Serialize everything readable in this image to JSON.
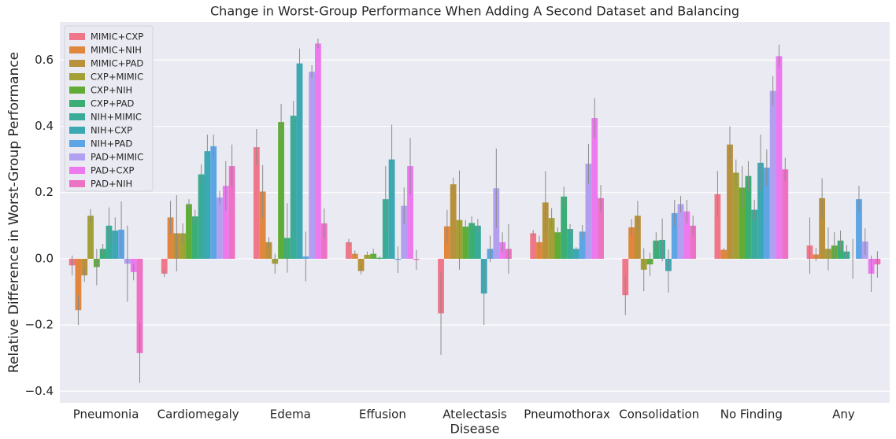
{
  "chart_data": {
    "type": "bar",
    "title": "Change in Worst-Group Performance When Adding A Second Dataset and Balancing",
    "x_label": "Disease",
    "y_label": "Relative Difference in Worst-Group Performance",
    "categories": [
      "Pneumonia",
      "Cardiomegaly",
      "Edema",
      "Effusion",
      "Atelectasis",
      "Pneumothorax",
      "Consolidation",
      "No Finding",
      "Any"
    ],
    "ylim": [
      -0.435,
      0.715
    ],
    "yticks": [
      {
        "value": -0.4,
        "label": "−0.4"
      },
      {
        "value": -0.2,
        "label": "−0.2"
      },
      {
        "value": 0,
        "label": "0.0"
      },
      0.2,
      0.4,
      0.6
    ],
    "grid": true,
    "legend": "upper left",
    "series": [
      {
        "name": "MIMIC+CXP",
        "color": "#f0778a",
        "values": [
          -0.02,
          -0.045,
          0.337,
          0.05,
          -0.165,
          0.077,
          -0.11,
          0.195,
          0.04
        ],
        "errors": [
          0.03,
          0.01,
          0.055,
          0.01,
          0.125,
          0.01,
          0.06,
          0.07,
          0.085
        ]
      },
      {
        "name": "MIMIC+NIH",
        "color": "#e0873d",
        "values": [
          -0.155,
          0.125,
          0.203,
          0.015,
          0.098,
          0.05,
          0.095,
          0.027,
          0.013
        ],
        "errors": [
          0.045,
          0.05,
          0.08,
          0.01,
          0.05,
          0.02,
          0.025,
          0.005,
          0.02
        ]
      },
      {
        "name": "MIMIC+PAD",
        "color": "#b8913a",
        "values": [
          -0.05,
          0.077,
          0.05,
          -0.037,
          0.225,
          0.17,
          0.13,
          0.345,
          0.183
        ],
        "errors": [
          0.02,
          0.115,
          0.015,
          0.01,
          0.02,
          0.095,
          0.045,
          0.055,
          0.06
        ]
      },
      {
        "name": "CXP+MIMIC",
        "color": "#a3a035",
        "values": [
          0.13,
          0.077,
          -0.015,
          0.012,
          0.117,
          0.123,
          -0.033,
          0.26,
          0.03
        ],
        "errors": [
          0.02,
          0.03,
          0.03,
          0.01,
          0.15,
          0.03,
          0.065,
          0.04,
          0.065
        ]
      },
      {
        "name": "CXP+NIH",
        "color": "#5fad36",
        "values": [
          -0.025,
          0.165,
          0.413,
          0.015,
          0.097,
          0.08,
          -0.017,
          0.215,
          0.04
        ],
        "errors": [
          0.055,
          0.015,
          0.055,
          0.015,
          0.02,
          0.015,
          0.035,
          0.065,
          0.04
        ]
      },
      {
        "name": "CXP+PAD",
        "color": "#3aae74",
        "values": [
          0.03,
          0.128,
          0.063,
          0.003,
          0.108,
          0.188,
          0.055,
          0.25,
          0.055
        ],
        "errors": [
          0.015,
          0.02,
          0.105,
          0.005,
          0.02,
          0.03,
          0.025,
          0.045,
          0.03
        ]
      },
      {
        "name": "NIH+MIMIC",
        "color": "#3aab98",
        "values": [
          0.1,
          0.255,
          0.432,
          0.18,
          0.1,
          0.09,
          0.057,
          0.148,
          0.022
        ],
        "errors": [
          0.055,
          0.03,
          0.045,
          0.1,
          0.02,
          0.015,
          0.065,
          0.03,
          0.02
        ]
      },
      {
        "name": "NIH+CXP",
        "color": "#3ba8b4",
        "values": [
          0.085,
          0.325,
          0.59,
          0.3,
          -0.105,
          0.03,
          -0.037,
          0.29,
          0
        ],
        "errors": [
          0.04,
          0.05,
          0.045,
          0.105,
          0.095,
          0.005,
          0.065,
          0.085,
          0.06
        ]
      },
      {
        "name": "NIH+PAD",
        "color": "#5ea5e6",
        "values": [
          0.088,
          0.34,
          0.007,
          -0.003,
          0.03,
          0.082,
          0.138,
          0.275,
          0.18
        ],
        "errors": [
          0.085,
          0.035,
          0.075,
          0.04,
          0.04,
          0.02,
          0.04,
          0.055,
          0.04
        ]
      },
      {
        "name": "PAD+MIMIC",
        "color": "#b29ff0",
        "values": [
          -0.015,
          0.185,
          0.565,
          0.16,
          0.213,
          0.287,
          0.165,
          0.507,
          0.052
        ],
        "errors": [
          0.115,
          0.02,
          0.02,
          0.055,
          0.12,
          0.06,
          0.025,
          0.045,
          0.04
        ]
      },
      {
        "name": "PAD+CXP",
        "color": "#ec79ee",
        "values": [
          -0.04,
          0.22,
          0.65,
          0.28,
          0.05,
          0.425,
          0.143,
          0.612,
          -0.045
        ],
        "errors": [
          0.025,
          0.075,
          0.015,
          0.085,
          0.03,
          0.06,
          0.035,
          0.035,
          0.055
        ]
      },
      {
        "name": "PAD+NIH",
        "color": "#ed72c4",
        "values": [
          -0.285,
          0.28,
          0.107,
          -0.003,
          0.03,
          0.183,
          0.1,
          0.27,
          -0.017
        ],
        "errors": [
          0.09,
          0.065,
          0.045,
          0.03,
          0.075,
          0.04,
          0.03,
          0.035,
          0.04
        ]
      }
    ]
  }
}
